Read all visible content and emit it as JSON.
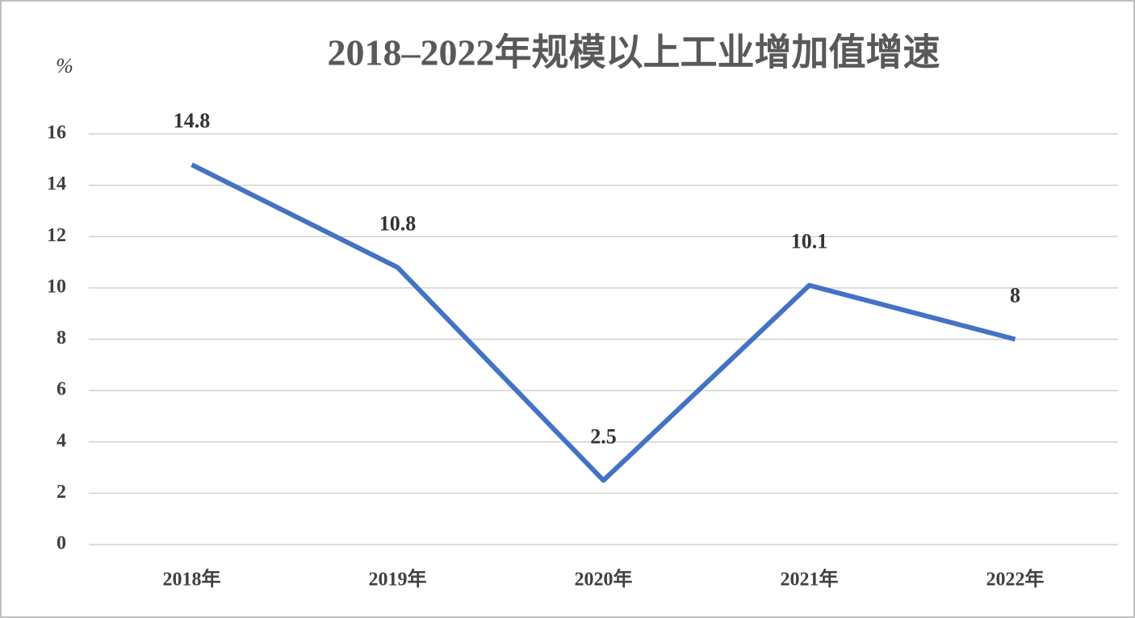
{
  "chart_data": {
    "type": "line",
    "title": "2018–2022年规模以上工业增加值增速",
    "y_label": "%",
    "categories": [
      "2018年",
      "2019年",
      "2020年",
      "2021年",
      "2022年"
    ],
    "values": [
      14.8,
      10.8,
      2.5,
      10.1,
      8
    ],
    "color": "#4472c4",
    "ylim": [
      0,
      16
    ],
    "yticks": [
      0,
      2,
      4,
      6,
      8,
      10,
      12,
      14,
      16
    ],
    "grid": true
  }
}
